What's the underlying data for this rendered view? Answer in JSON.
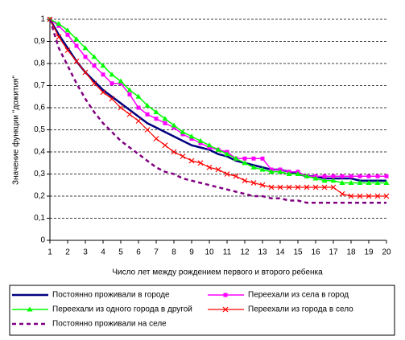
{
  "chart_data": {
    "type": "line",
    "xlabel": "Число лет между рождением первого и второго ребенка",
    "ylabel": "Значение функции \"дожития\"",
    "x": [
      1,
      1.5,
      2,
      2.5,
      3,
      3.5,
      4,
      4.5,
      5,
      5.5,
      6,
      6.5,
      7,
      7.5,
      8,
      8.5,
      9,
      9.5,
      10,
      10.5,
      11,
      11.5,
      12,
      12.5,
      13,
      13.5,
      14,
      14.5,
      15,
      15.5,
      16,
      16.5,
      17,
      17.5,
      18,
      18.5,
      19,
      19.5,
      20
    ],
    "xlim": [
      1,
      20
    ],
    "xticks": [
      1,
      2,
      3,
      4,
      5,
      6,
      7,
      8,
      9,
      10,
      11,
      12,
      13,
      14,
      15,
      16,
      17,
      18,
      19,
      20
    ],
    "ylim": [
      0,
      1
    ],
    "yticks": [
      0,
      {
        "value": 0.1,
        "label": "0,1"
      },
      {
        "value": 0.2,
        "label": "0,2"
      },
      {
        "value": 0.3,
        "label": "0,3"
      },
      {
        "value": 0.4,
        "label": "0,4"
      },
      {
        "value": 0.5,
        "label": "0,5"
      },
      {
        "value": 0.6,
        "label": "0,6"
      },
      {
        "value": 0.7,
        "label": "0,7"
      },
      {
        "value": 0.8,
        "label": "0,8"
      },
      {
        "value": 0.9,
        "label": "0,9"
      },
      1
    ],
    "grid": true,
    "series": [
      {
        "name": "Постоянно проживали в городе",
        "color": "#000080",
        "width": 2.5,
        "style": "solid",
        "marker": "none",
        "values": [
          1,
          0.93,
          0.87,
          0.81,
          0.76,
          0.72,
          0.68,
          0.65,
          0.62,
          0.59,
          0.56,
          0.53,
          0.51,
          0.49,
          0.47,
          0.45,
          0.43,
          0.42,
          0.41,
          0.39,
          0.38,
          0.36,
          0.35,
          0.34,
          0.33,
          0.32,
          0.32,
          0.31,
          0.3,
          0.29,
          0.29,
          0.28,
          0.28,
          0.28,
          0.28,
          0.27,
          0.27,
          0.27,
          0.27
        ]
      },
      {
        "name": "Переехали из села в город",
        "color": "#ff00ff",
        "width": 1.5,
        "style": "solid",
        "marker": "square",
        "values": [
          1,
          0.97,
          0.93,
          0.88,
          0.83,
          0.79,
          0.75,
          0.71,
          0.71,
          0.66,
          0.6,
          0.57,
          0.55,
          0.53,
          0.51,
          0.48,
          0.46,
          0.44,
          0.42,
          0.41,
          0.4,
          0.37,
          0.37,
          0.37,
          0.37,
          0.32,
          0.32,
          0.31,
          0.31,
          0.29,
          0.29,
          0.29,
          0.29,
          0.29,
          0.29,
          0.29,
          0.29,
          0.29,
          0.29
        ]
      },
      {
        "name": "Переехали из одного города в другой",
        "color": "#00ff00",
        "width": 1.5,
        "style": "solid",
        "marker": "triangle",
        "values": [
          1,
          0.98,
          0.95,
          0.91,
          0.87,
          0.83,
          0.79,
          0.75,
          0.72,
          0.68,
          0.65,
          0.61,
          0.58,
          0.55,
          0.52,
          0.49,
          0.47,
          0.45,
          0.43,
          0.41,
          0.39,
          0.37,
          0.35,
          0.33,
          0.32,
          0.31,
          0.31,
          0.3,
          0.3,
          0.29,
          0.28,
          0.27,
          0.27,
          0.26,
          0.26,
          0.26,
          0.26,
          0.26,
          0.26
        ]
      },
      {
        "name": "Переехали из города в село",
        "color": "#ff0000",
        "width": 1.2,
        "style": "solid",
        "marker": "cross",
        "values": [
          1,
          0.92,
          0.86,
          0.81,
          0.76,
          0.71,
          0.67,
          0.64,
          0.6,
          0.57,
          0.54,
          0.5,
          0.46,
          0.43,
          0.4,
          0.38,
          0.36,
          0.35,
          0.33,
          0.32,
          0.3,
          0.29,
          0.27,
          0.26,
          0.25,
          0.24,
          0.24,
          0.24,
          0.24,
          0.24,
          0.24,
          0.24,
          0.24,
          0.21,
          0.2,
          0.2,
          0.2,
          0.2,
          0.2
        ]
      },
      {
        "name": "Постоянно проживали на селе",
        "color": "#800080",
        "width": 2.5,
        "style": "dashed",
        "marker": "none",
        "values": [
          1,
          0.87,
          0.79,
          0.71,
          0.64,
          0.58,
          0.53,
          0.49,
          0.45,
          0.42,
          0.39,
          0.36,
          0.33,
          0.31,
          0.3,
          0.28,
          0.27,
          0.26,
          0.25,
          0.24,
          0.23,
          0.22,
          0.21,
          0.2,
          0.2,
          0.19,
          0.19,
          0.18,
          0.18,
          0.17,
          0.17,
          0.17,
          0.17,
          0.17,
          0.17,
          0.17,
          0.17,
          0.17,
          0.17
        ]
      }
    ]
  }
}
